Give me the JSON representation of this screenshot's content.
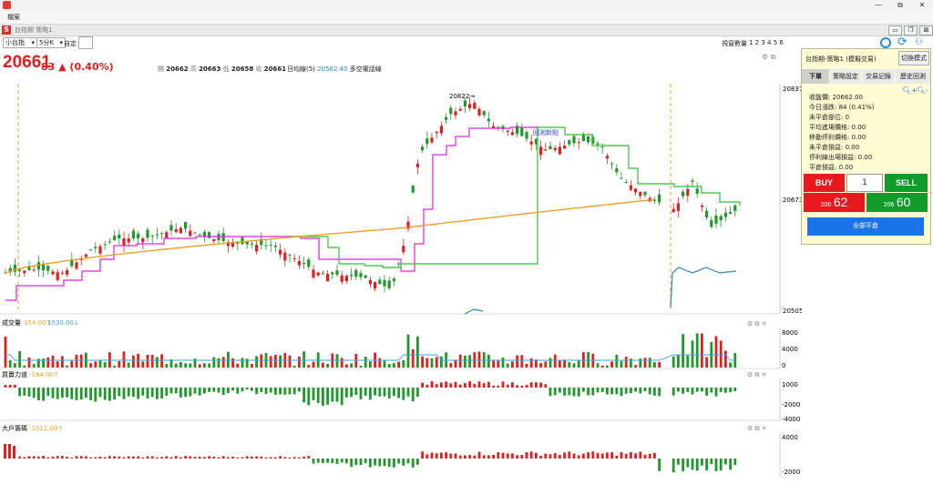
{
  "window": {
    "controls": [
      "—",
      "⧉",
      "✕"
    ]
  },
  "menu": {
    "file": "檔案"
  },
  "document": {
    "tab_title": "台指期  策略1",
    "controls": [
      "▭",
      "❐",
      "⊠"
    ]
  },
  "toolbar": {
    "symbol": "小台指",
    "interval": "5分K",
    "custom_label": "自定",
    "view_count_label": "視窗數量",
    "view_counts": "1 2 3 4 5 6"
  },
  "quote": {
    "price": "20661",
    "change": "83 ▲ (0.40%)",
    "ohlc": [
      {
        "k": "開",
        "v": "20662"
      },
      {
        "k": "高",
        "v": "20663"
      },
      {
        "k": "低",
        "v": "20658"
      },
      {
        "k": "收",
        "v": "20661"
      }
    ],
    "indicator_label": "日均線(5)",
    "indicator_value": "20562.40",
    "indicator_note": "多空電話線"
  },
  "main_chart": {
    "y_ticks": [
      "20837",
      "20671",
      "20505"
    ],
    "annotations": {
      "high": "20822→",
      "mid": "回測新點"
    }
  },
  "volume_pane": {
    "title": "成交量",
    "v1": "154.00↑",
    "v2": "1530.00↓",
    "y_ticks": [
      "8000",
      "4000",
      "0"
    ]
  },
  "buysell_pane": {
    "title": "買賣力道",
    "v1": "-184.00↑",
    "y_ticks": [
      "1000",
      "-2000",
      "-4000"
    ]
  },
  "bigplayer_pane": {
    "title": "大戶籌碼",
    "v1": "-1512.00↑",
    "y_ticks": [
      "4000",
      "-2000"
    ]
  },
  "panel": {
    "strategy_title": "台指期-策略1 (模擬交易)",
    "mode_button": "切換模式",
    "tabs": [
      "下單",
      "策略設定",
      "交易記錄",
      "歷史回測"
    ],
    "info": [
      "收盤價: 20662.00",
      "今日漲跌: 84 (0.41%)",
      "未平倉部位: 0",
      "平均進場價格: 0.00",
      "移動停利價格: 0.00",
      "未平倉損益: 0.00",
      "停利線出場損益: 0.00",
      "平倉損益: 0.00"
    ],
    "buy_label": "BUY",
    "sell_label": "SELL",
    "qty": "1",
    "bid_prefix": "206",
    "bid": "62",
    "ask_prefix": "206",
    "ask": "60",
    "close_all": "全部平倉"
  },
  "colors": {
    "up": "#e02020",
    "down": "#1f9a2a",
    "magenta": "#e020e0",
    "green_line": "#2ec12e",
    "orange_line": "#f39a1d",
    "buy": "#e6191f",
    "sell": "#109b2b",
    "close_all": "#1a73e8"
  }
}
